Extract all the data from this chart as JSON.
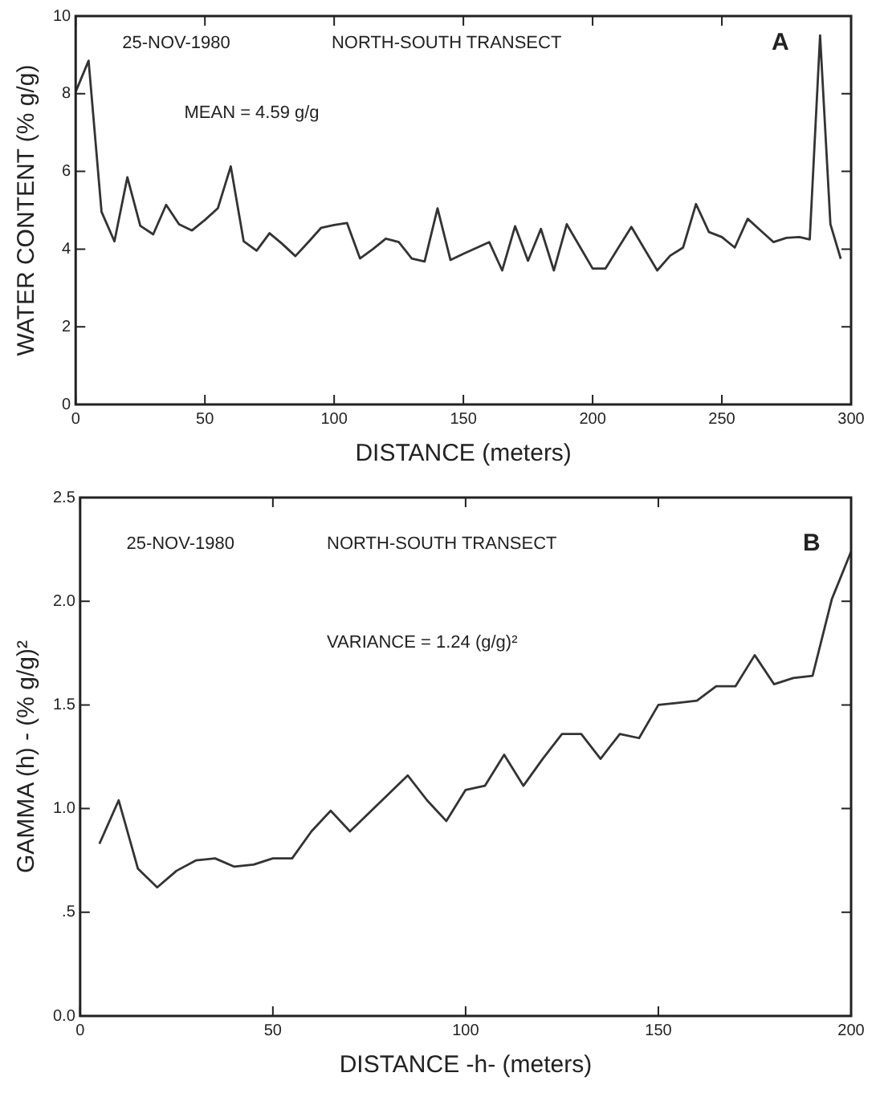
{
  "chart_data": [
    {
      "type": "line",
      "xlabel": "DISTANCE (meters)",
      "ylabel": "WATER CONTENT (% g/g)",
      "annotations": [
        "25-NOV-1980",
        "NORTH-SOUTH TRANSECT",
        "A",
        "MEAN = 4.59 g/g"
      ],
      "xlim": [
        0,
        300
      ],
      "xticks": [
        0,
        50,
        100,
        150,
        200,
        250,
        300
      ],
      "ylim": [
        0,
        10
      ],
      "yticks": [
        0,
        2,
        4,
        6,
        8,
        10
      ],
      "grid": false,
      "legend": false,
      "marker": "none",
      "line_style": "solid",
      "series": [
        {
          "color": "#333333",
          "x": [
            0,
            5,
            10,
            15,
            20,
            25,
            30,
            35,
            40,
            45,
            50,
            55,
            60,
            65,
            70,
            75,
            80,
            85,
            90,
            95,
            100,
            105,
            110,
            115,
            120,
            125,
            130,
            135,
            140,
            145,
            150,
            155,
            160,
            165,
            170,
            175,
            180,
            185,
            190,
            195,
            200,
            205,
            210,
            215,
            220,
            225,
            230,
            235,
            240,
            245,
            250,
            255,
            260,
            265,
            270,
            275,
            280,
            284,
            288,
            292,
            296
          ],
          "values": [
            8.05,
            8.85,
            4.96,
            4.2,
            5.85,
            4.6,
            4.38,
            5.14,
            4.64,
            4.48,
            4.75,
            5.05,
            6.13,
            4.2,
            3.96,
            4.41,
            4.13,
            3.82,
            4.18,
            4.55,
            4.62,
            4.67,
            3.76,
            4.0,
            4.27,
            4.18,
            3.76,
            3.68,
            5.05,
            3.72,
            3.88,
            4.03,
            4.18,
            3.45,
            4.59,
            3.7,
            4.52,
            3.45,
            4.64,
            4.07,
            3.5,
            3.5,
            4.04,
            4.57,
            4.01,
            3.45,
            3.83,
            4.04,
            5.16,
            4.44,
            4.31,
            4.04,
            4.78,
            4.48,
            4.18,
            4.29,
            4.31,
            4.25,
            9.5,
            4.64,
            3.75
          ]
        }
      ]
    },
    {
      "type": "line",
      "xlabel": "DISTANCE -h- (meters)",
      "ylabel": "GAMMA (h) - (% g/g)²",
      "annotations": [
        "25-NOV-1980",
        "NORTH-SOUTH TRANSECT",
        "B",
        "VARIANCE = 1.24 (g/g)²"
      ],
      "xlim": [
        0,
        200
      ],
      "xticks": [
        0,
        50,
        100,
        150,
        200
      ],
      "ylim": [
        0,
        2.5
      ],
      "yticks": [
        {
          "value": 0,
          "label": "0.0"
        },
        {
          "value": 0.5,
          "label": ".5"
        },
        {
          "value": 1,
          "label": "1.0"
        },
        {
          "value": 1.5,
          "label": "1.5"
        },
        {
          "value": 2,
          "label": "2.0"
        },
        {
          "value": 2.5,
          "label": "2.5"
        }
      ],
      "grid": false,
      "legend": false,
      "marker": "none",
      "line_style": "solid",
      "series": [
        {
          "color": "#333333",
          "x": [
            5,
            10,
            15,
            20,
            25,
            30,
            35,
            40,
            45,
            50,
            55,
            60,
            65,
            70,
            75,
            80,
            85,
            90,
            95,
            100,
            105,
            110,
            115,
            120,
            125,
            130,
            135,
            140,
            145,
            150,
            155,
            160,
            165,
            170,
            175,
            180,
            185,
            190,
            195,
            200
          ],
          "values": [
            0.83,
            1.04,
            0.71,
            0.62,
            0.7,
            0.75,
            0.76,
            0.72,
            0.73,
            0.76,
            0.76,
            0.89,
            0.99,
            0.89,
            0.98,
            1.07,
            1.16,
            1.04,
            0.94,
            1.09,
            1.11,
            1.26,
            1.11,
            1.24,
            1.36,
            1.36,
            1.24,
            1.36,
            1.34,
            1.5,
            1.51,
            1.52,
            1.59,
            1.59,
            1.74,
            1.6,
            1.63,
            1.64,
            2.01,
            2.24
          ]
        }
      ]
    }
  ]
}
